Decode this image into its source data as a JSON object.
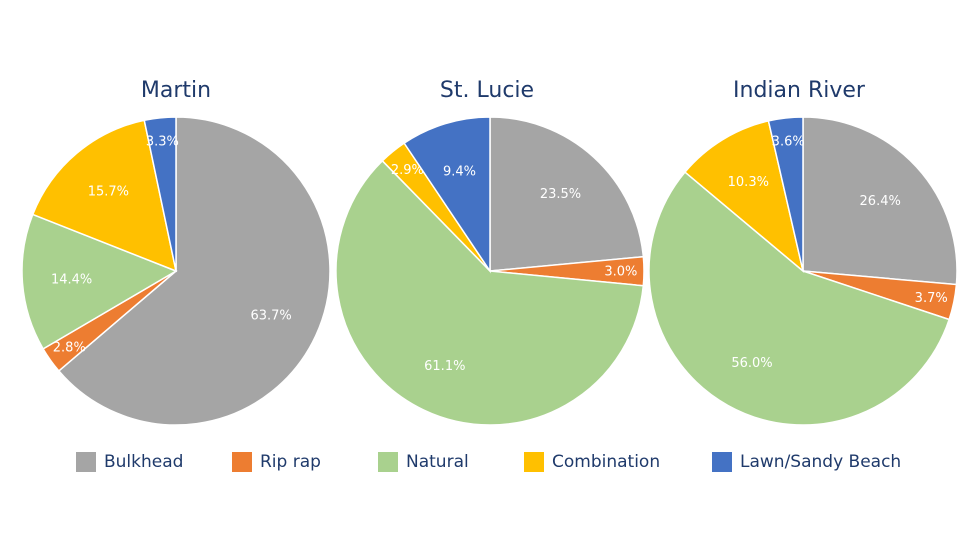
{
  "chart_data": [
    {
      "type": "pie",
      "title": "Martin",
      "slices": [
        {
          "label": "Bulkhead",
          "value": 63.7,
          "text": "63.7%"
        },
        {
          "label": "Rip rap",
          "value": 2.8,
          "text": "2.8%"
        },
        {
          "label": "Natural",
          "value": 14.4,
          "text": "14.4%"
        },
        {
          "label": "Combination",
          "value": 15.7,
          "text": "15.7%"
        },
        {
          "label": "Lawn/Sandy Beach",
          "value": 3.3,
          "text": "3.3%"
        }
      ]
    },
    {
      "type": "pie",
      "title": "St. Lucie",
      "slices": [
        {
          "label": "Bulkhead",
          "value": 23.5,
          "text": "23.5%"
        },
        {
          "label": "Rip rap",
          "value": 3.0,
          "text": "3.0%"
        },
        {
          "label": "Natural",
          "value": 61.1,
          "text": "61.1%"
        },
        {
          "label": "Combination",
          "value": 2.9,
          "text": "2.9%"
        },
        {
          "label": "Lawn/Sandy Beach",
          "value": 9.4,
          "text": "9.4%"
        }
      ]
    },
    {
      "type": "pie",
      "title": "Indian River",
      "slices": [
        {
          "label": "Bulkhead",
          "value": 26.4,
          "text": "26.4%"
        },
        {
          "label": "Rip rap",
          "value": 3.7,
          "text": "3.7%"
        },
        {
          "label": "Natural",
          "value": 56.0,
          "text": "56.0%"
        },
        {
          "label": "Combination",
          "value": 10.3,
          "text": "10.3%"
        },
        {
          "label": "Lawn/Sandy Beach",
          "value": 3.6,
          "text": "3.6%"
        }
      ]
    }
  ],
  "legend": [
    {
      "label": "Bulkhead",
      "color": "#a5a5a5"
    },
    {
      "label": "Rip rap",
      "color": "#ed7d31"
    },
    {
      "label": "Natural",
      "color": "#a9d18e"
    },
    {
      "label": "Combination",
      "color": "#ffc000"
    },
    {
      "label": "Lawn/Sandy Beach",
      "color": "#4472c4"
    }
  ],
  "colors": {
    "Bulkhead": "#a5a5a5",
    "Rip rap": "#ed7d31",
    "Natural": "#a9d18e",
    "Combination": "#ffc000",
    "Lawn/Sandy Beach": "#4472c4",
    "title": "#1f3a6b",
    "data_label": "#ffffff"
  }
}
